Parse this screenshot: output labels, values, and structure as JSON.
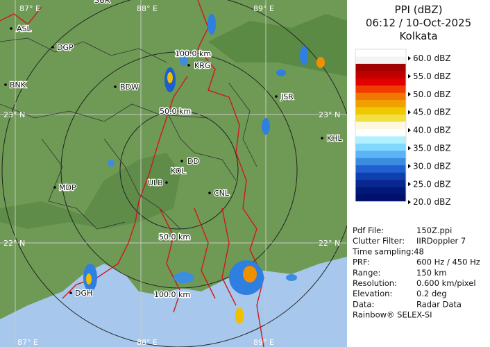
{
  "header": {
    "title": "PPI (dBZ)",
    "time": "06:12 / 10-Oct-2025",
    "site": "Kolkata"
  },
  "legend": {
    "labels": [
      "60.0 dBZ",
      "55.0 dBZ",
      "50.0 dBZ",
      "45.0 dBZ",
      "40.0 dBZ",
      "35.0 dBZ",
      "30.0 dBZ",
      "25.0 dBZ",
      "20.0 dBZ"
    ]
  },
  "info": {
    "rows": [
      [
        "Pdf File:",
        "150Z.ppi"
      ],
      [
        "Clutter Filter:",
        "IIRDoppler 7"
      ],
      [
        "Time sampling:48"
      ],
      [
        "PRF:",
        "600 Hz / 450 Hz"
      ],
      [
        "Range:",
        "150 km"
      ],
      [
        "Resolution:",
        "0.600 km/pixel"
      ],
      [
        "Elevation:",
        "0.2 deg"
      ],
      [
        "Data:",
        "Radar Data"
      ]
    ],
    "footer": "Rainbow® SELEX-SI"
  },
  "map": {
    "grid_labels": [
      "87° E",
      "88° E",
      "89° E",
      "23° N",
      "23° N",
      "22° N",
      "22° N",
      "87° E",
      "88° E",
      "89° E"
    ],
    "ring_labels": [
      "100.0 km",
      "50.0 km",
      "50.0 km",
      "100.0 km"
    ],
    "cities": [
      "SUR",
      "ASL",
      "DGP",
      "BDW",
      "KRG",
      "BNK",
      "JSR",
      "KHL",
      "DD",
      "KOL",
      "ULB",
      "CNL",
      "MDP",
      "DGH"
    ]
  }
}
